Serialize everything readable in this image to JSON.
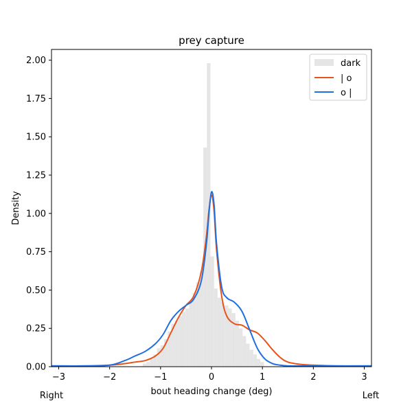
{
  "chart_data": {
    "type": "histogram+line",
    "title": "prey capture",
    "xlabel": "bout heading change (deg)",
    "ylabel": "Density",
    "xlim": [
      -3.14159,
      3.14159
    ],
    "ylim": [
      0,
      2.07
    ],
    "x_ticks": [
      -3,
      -2,
      -1,
      0,
      1,
      2,
      3
    ],
    "y_ticks": [
      0.0,
      0.25,
      0.5,
      0.75,
      1.0,
      1.25,
      1.5,
      1.75,
      2.0
    ],
    "y_tick_labels": [
      "0.00",
      "0.25",
      "0.50",
      "0.75",
      "1.00",
      "1.25",
      "1.50",
      "1.75",
      "2.00"
    ],
    "corner_labels": {
      "left": "Right",
      "right": "Left"
    },
    "legend": {
      "position": "top-right",
      "entries": [
        {
          "label": "dark",
          "kind": "patch",
          "color": "#e5e5e5"
        },
        {
          "label": "| o",
          "kind": "line",
          "color": "#e8531a"
        },
        {
          "label": "o |",
          "kind": "line",
          "color": "#1f6fe0"
        }
      ]
    },
    "histogram": {
      "name": "dark",
      "color": "#e5e5e5",
      "bin_edges": [
        -1.35,
        -1.28,
        -1.21,
        -1.14,
        -1.07,
        -1.0,
        -0.93,
        -0.86,
        -0.79,
        -0.72,
        -0.65,
        -0.58,
        -0.51,
        -0.44,
        -0.37,
        -0.3,
        -0.23,
        -0.16,
        -0.09,
        -0.02,
        0.05,
        0.12,
        0.19,
        0.26,
        0.33,
        0.4,
        0.47,
        0.54,
        0.61,
        0.68,
        0.75,
        0.82,
        0.89,
        0.96,
        1.03
      ],
      "values": [
        0.02,
        0.03,
        0.05,
        0.08,
        0.12,
        0.14,
        0.18,
        0.23,
        0.28,
        0.3,
        0.33,
        0.36,
        0.38,
        0.42,
        0.48,
        0.55,
        0.62,
        1.43,
        1.98,
        0.72,
        0.51,
        0.45,
        0.42,
        0.4,
        0.38,
        0.35,
        0.3,
        0.25,
        0.2,
        0.15,
        0.11,
        0.08,
        0.05,
        0.03
      ]
    },
    "series": [
      {
        "name": "| o",
        "color": "#e8531a",
        "x": [
          -3.14,
          -2.5,
          -2.0,
          -1.7,
          -1.5,
          -1.3,
          -1.1,
          -0.95,
          -0.8,
          -0.65,
          -0.5,
          -0.35,
          -0.2,
          -0.1,
          -0.05,
          0.0,
          0.05,
          0.1,
          0.2,
          0.3,
          0.45,
          0.6,
          0.75,
          0.9,
          1.05,
          1.2,
          1.35,
          1.5,
          1.75,
          2.0,
          2.5,
          3.14
        ],
        "y": [
          0.005,
          0.005,
          0.01,
          0.02,
          0.03,
          0.04,
          0.07,
          0.12,
          0.22,
          0.32,
          0.4,
          0.46,
          0.62,
          0.85,
          1.02,
          1.12,
          1.02,
          0.76,
          0.46,
          0.33,
          0.28,
          0.27,
          0.24,
          0.22,
          0.17,
          0.11,
          0.06,
          0.03,
          0.015,
          0.01,
          0.005,
          0.005
        ]
      },
      {
        "name": "o |",
        "color": "#1f6fe0",
        "x": [
          -3.14,
          -2.5,
          -2.0,
          -1.7,
          -1.5,
          -1.3,
          -1.1,
          -0.95,
          -0.8,
          -0.65,
          -0.5,
          -0.35,
          -0.2,
          -0.1,
          -0.05,
          0.0,
          0.05,
          0.1,
          0.2,
          0.3,
          0.45,
          0.6,
          0.75,
          0.9,
          1.05,
          1.2,
          1.35,
          1.5,
          1.75,
          2.0,
          2.5,
          3.14
        ],
        "y": [
          0.005,
          0.005,
          0.01,
          0.04,
          0.07,
          0.1,
          0.15,
          0.21,
          0.3,
          0.36,
          0.4,
          0.44,
          0.56,
          0.8,
          1.0,
          1.14,
          1.06,
          0.8,
          0.52,
          0.45,
          0.42,
          0.36,
          0.24,
          0.12,
          0.05,
          0.02,
          0.01,
          0.005,
          0.005,
          0.005,
          0.005,
          0.005
        ]
      }
    ]
  }
}
